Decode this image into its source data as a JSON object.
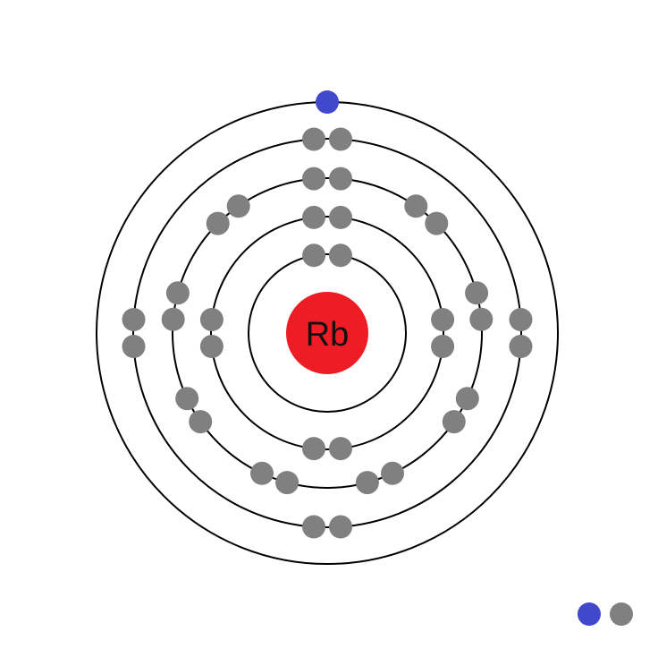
{
  "diagram": {
    "type": "bohr-model",
    "element_symbol": "Rb",
    "shells": [
      {
        "electrons": 2
      },
      {
        "electrons": 8
      },
      {
        "electrons": 18
      },
      {
        "electrons": 8
      },
      {
        "electrons": 1
      }
    ],
    "legend": {
      "valence_electron_color": "#4148cc",
      "core_electron_color": "#808080"
    },
    "colors": {
      "nucleus": "#ee1c25",
      "valence_electron": "#4148cc",
      "core_electron": "#808080",
      "orbit": "#000000"
    }
  }
}
